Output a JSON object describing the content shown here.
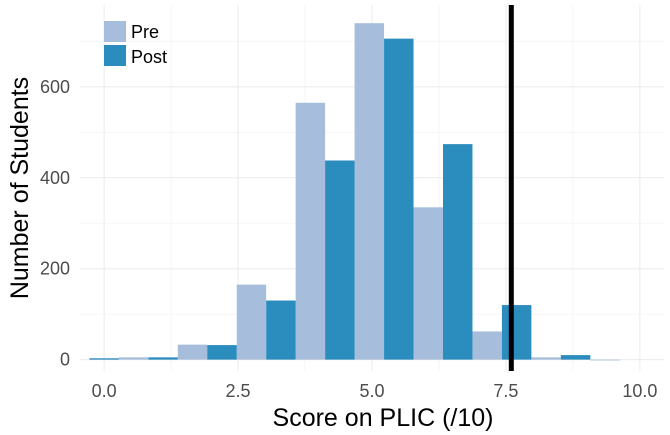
{
  "chart_data": {
    "type": "bar",
    "title": "",
    "xlabel": "Score on PLIC (/10)",
    "ylabel": "Number of Students",
    "xlim": [
      -0.45,
      10.45
    ],
    "ylim": [
      -25,
      780
    ],
    "x_ticks": [
      0.0,
      2.5,
      5.0,
      7.5,
      10.0
    ],
    "x_tick_labels": [
      "0.0",
      "2.5",
      "5.0",
      "7.5",
      "10.0"
    ],
    "y_ticks": [
      0,
      200,
      400,
      600
    ],
    "y_tick_labels": [
      "0",
      "200",
      "400",
      "600"
    ],
    "bin_width": 0.55,
    "grid": true,
    "legend_position": "top-left",
    "series": [
      {
        "name": "Pre",
        "color": "#a6bddb",
        "x": [
          0.55,
          1.65,
          2.75,
          3.85,
          4.95,
          6.05,
          7.15,
          8.25,
          9.35
        ],
        "values": [
          5,
          33,
          165,
          565,
          740,
          335,
          62,
          5,
          0
        ]
      },
      {
        "name": "Post",
        "color": "#2b8cbe",
        "x": [
          0.0,
          1.1,
          2.2,
          3.3,
          4.4,
          5.5,
          6.6,
          7.7,
          8.8
        ],
        "values": [
          3,
          5,
          32,
          130,
          438,
          706,
          474,
          120,
          10
        ]
      }
    ],
    "vline": {
      "x": 7.6,
      "color": "#000000"
    }
  }
}
